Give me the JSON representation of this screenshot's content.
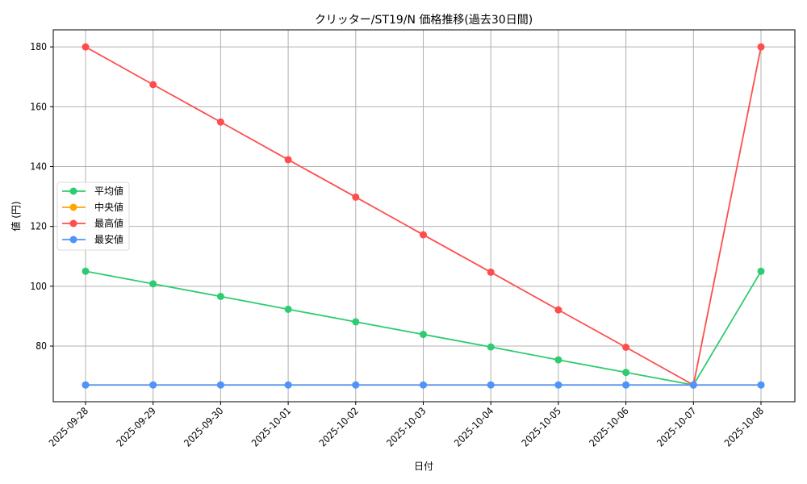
{
  "chart_data": {
    "type": "line",
    "title": "クリッター/ST19/N 価格推移(過去30日間)",
    "xlabel": "日付",
    "ylabel": "値 (円)",
    "categories": [
      "2025-09-28",
      "2025-09-29",
      "2025-09-30",
      "2025-10-01",
      "2025-10-02",
      "2025-10-03",
      "2025-10-04",
      "2025-10-05",
      "2025-10-06",
      "2025-10-07",
      "2025-10-08"
    ],
    "yticks": [
      80,
      100,
      120,
      140,
      160,
      180
    ],
    "ylim": [
      61.4,
      185.7
    ],
    "grid": true,
    "legend_position": "center left",
    "series": [
      {
        "name": "平均値",
        "color": "#2ecc71",
        "values": [
          105,
          100.8,
          96.6,
          92.3,
          88.1,
          83.9,
          79.7,
          75.4,
          71.2,
          67,
          105
        ]
      },
      {
        "name": "中央値",
        "color": "#ffa500",
        "values": [
          67,
          67,
          67,
          67,
          67,
          67,
          67,
          67,
          67,
          67,
          67
        ]
      },
      {
        "name": "最高値",
        "color": "#ff4d4d",
        "values": [
          180,
          167.4,
          154.9,
          142.3,
          129.8,
          117.2,
          104.7,
          92.1,
          79.6,
          67,
          180
        ]
      },
      {
        "name": "最安値",
        "color": "#4d94ff",
        "values": [
          67,
          67,
          67,
          67,
          67,
          67,
          67,
          67,
          67,
          67,
          67
        ]
      }
    ]
  }
}
